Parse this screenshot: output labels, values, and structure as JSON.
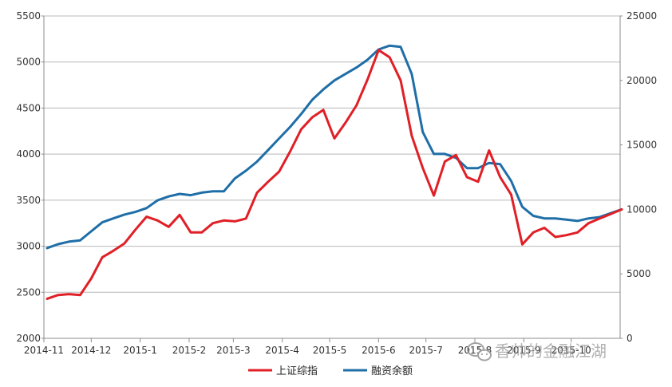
{
  "watermark": {
    "text": "香帅的金融江湖",
    "icon": "wechat-icon"
  },
  "chart_data": {
    "type": "line",
    "title": "",
    "xlabel": "",
    "ylabel": "",
    "y2label": "",
    "grid": true,
    "legend_position": "bottom",
    "x_tick_labels": [
      "2014-11",
      "2014-12",
      "2015-1",
      "2015-2",
      "2015-3",
      "2015-4",
      "2015-5",
      "2015-6",
      "2015-7",
      "2015-8",
      "2015-9",
      "2015-10"
    ],
    "y_ticks_left": [
      2000,
      2500,
      3000,
      3500,
      4000,
      4500,
      5000,
      5500
    ],
    "y_ticks_right": [
      0,
      5000,
      10000,
      15000,
      20000,
      25000
    ],
    "ylim_left": [
      2000,
      5500
    ],
    "ylim_right": [
      0,
      25000
    ],
    "x": [
      "2014-11-03",
      "2014-11-10",
      "2014-11-17",
      "2014-11-24",
      "2014-12-01",
      "2014-12-08",
      "2014-12-15",
      "2014-12-22",
      "2014-12-29",
      "2015-01-05",
      "2015-01-12",
      "2015-01-19",
      "2015-01-26",
      "2015-02-02",
      "2015-02-09",
      "2015-02-16",
      "2015-02-23",
      "2015-03-02",
      "2015-03-09",
      "2015-03-16",
      "2015-03-23",
      "2015-03-30",
      "2015-04-06",
      "2015-04-13",
      "2015-04-20",
      "2015-04-27",
      "2015-05-04",
      "2015-05-11",
      "2015-05-18",
      "2015-05-25",
      "2015-06-01",
      "2015-06-08",
      "2015-06-15",
      "2015-06-22",
      "2015-06-29",
      "2015-07-06",
      "2015-07-13",
      "2015-07-20",
      "2015-07-27",
      "2015-08-03",
      "2015-08-10",
      "2015-08-17",
      "2015-08-24",
      "2015-08-31",
      "2015-09-07",
      "2015-09-14",
      "2015-09-21",
      "2015-09-28",
      "2015-10-05",
      "2015-10-12",
      "2015-10-19",
      "2015-10-26",
      "2015-11-02"
    ],
    "series": [
      {
        "name": "上证综指",
        "color": "#e01f26",
        "axis": "left",
        "values": [
          2430,
          2470,
          2480,
          2470,
          2650,
          2880,
          2950,
          3030,
          3180,
          3320,
          3280,
          3210,
          3340,
          3150,
          3150,
          3250,
          3280,
          3270,
          3300,
          3580,
          3700,
          3810,
          4030,
          4270,
          4400,
          4480,
          4170,
          4340,
          4530,
          4810,
          5130,
          5050,
          4800,
          4200,
          3850,
          3550,
          3920,
          3990,
          3750,
          3700,
          4040,
          3750,
          3560,
          3020,
          3150,
          3200,
          3100,
          3120,
          3150,
          3250,
          3300,
          3350,
          3400
        ]
      },
      {
        "name": "融资余额",
        "color": "#1f6ea7",
        "axis": "right",
        "values": [
          7000,
          7300,
          7500,
          7600,
          8300,
          9000,
          9300,
          9600,
          9800,
          10100,
          10700,
          11000,
          11200,
          11100,
          11300,
          11400,
          11400,
          12400,
          13000,
          13700,
          14600,
          15500,
          16400,
          17400,
          18500,
          19300,
          20000,
          20500,
          21000,
          21600,
          22400,
          22700,
          22600,
          20500,
          16000,
          14300,
          14300,
          14000,
          13200,
          13200,
          13600,
          13500,
          12200,
          10200,
          9500,
          9300,
          9300,
          9200,
          9100,
          9300,
          9400,
          9700,
          10000
        ]
      }
    ]
  }
}
